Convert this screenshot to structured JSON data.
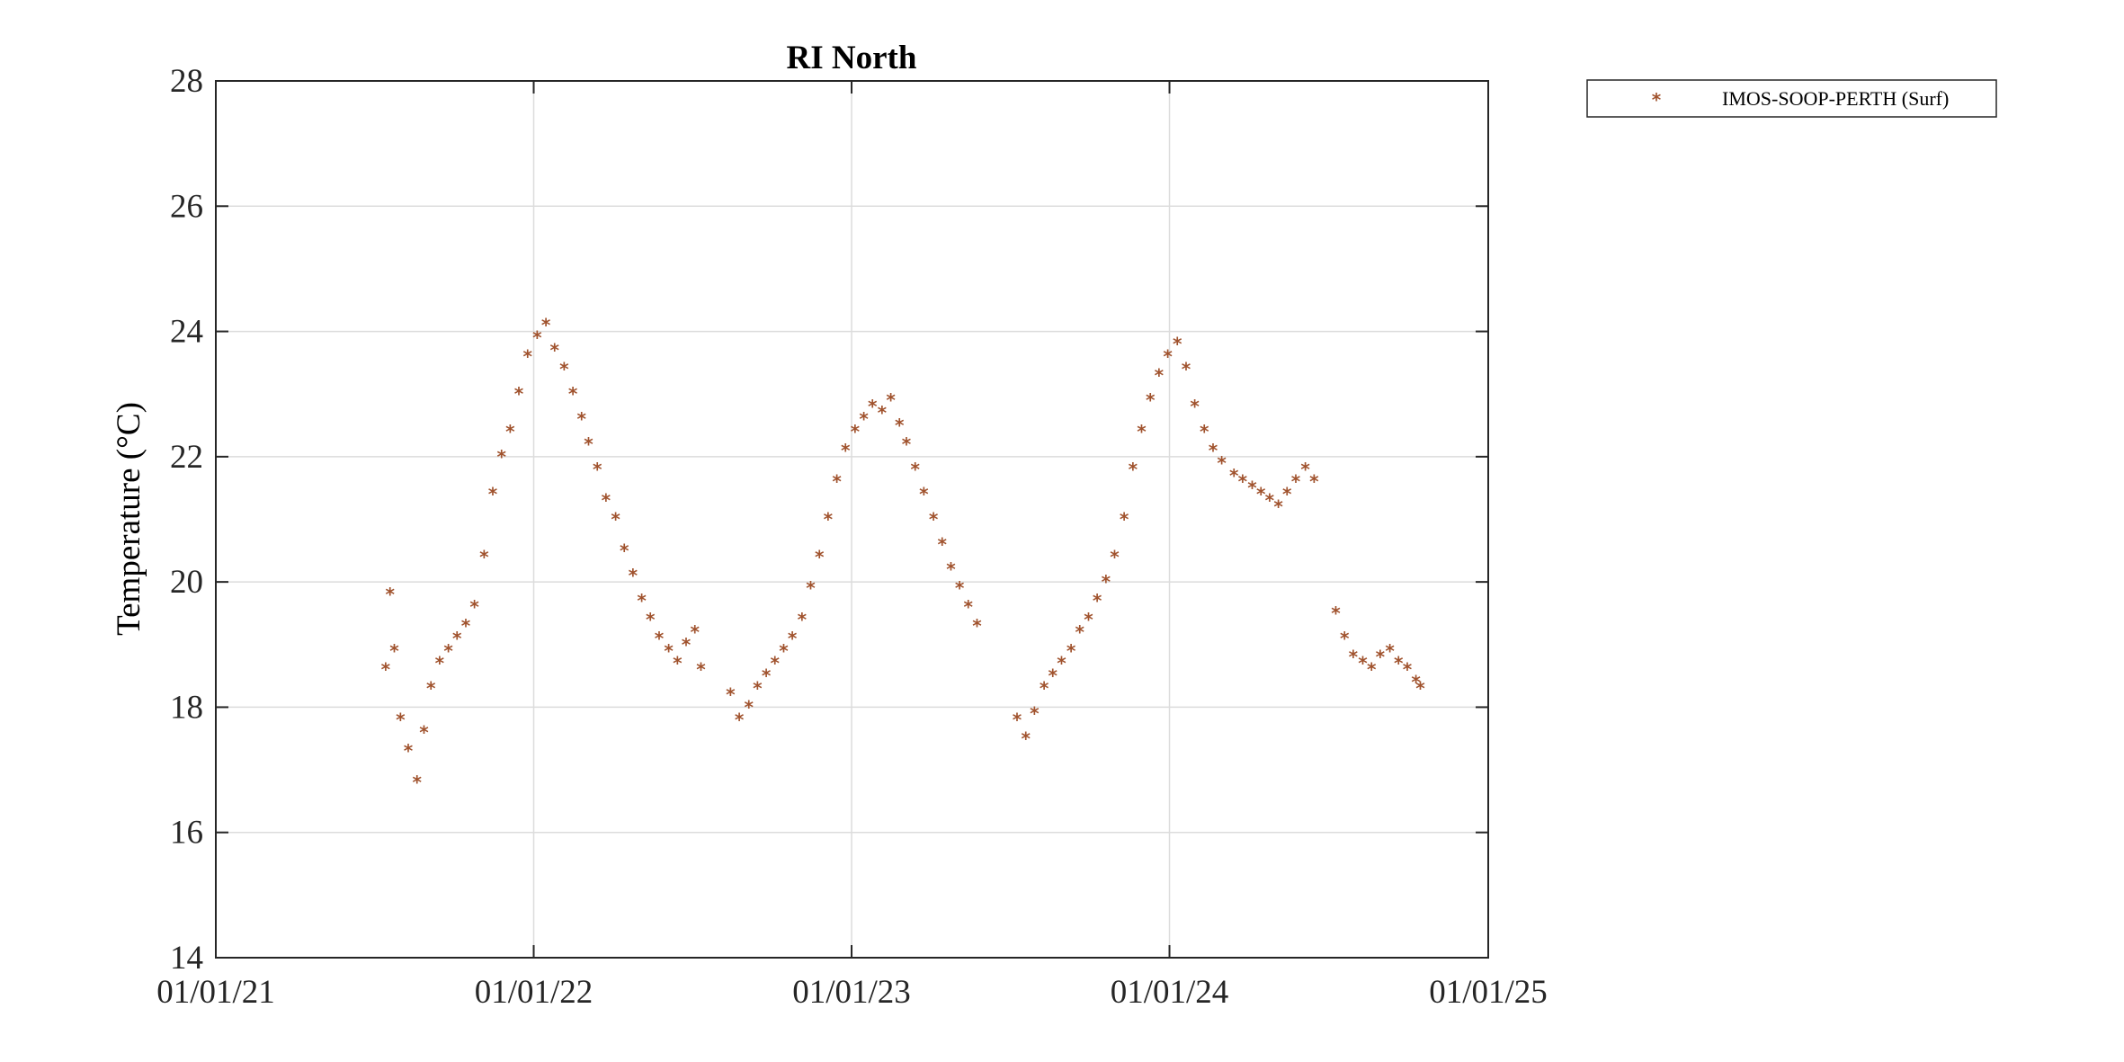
{
  "chart_data": {
    "type": "scatter",
    "title": "RI North",
    "xlabel": "",
    "ylabel": "Temperature (°C)",
    "xlim": [
      "2021-01-01",
      "2025-01-01"
    ],
    "ylim": [
      14,
      28
    ],
    "x_ticks": [
      "2021-01-01",
      "2022-01-01",
      "2023-01-01",
      "2024-01-01",
      "2025-01-01"
    ],
    "x_tick_labels": [
      "01/01/21",
      "01/01/22",
      "01/01/23",
      "01/01/24",
      "01/01/25"
    ],
    "y_ticks": [
      14,
      16,
      18,
      20,
      22,
      24,
      26,
      28
    ],
    "y_tick_labels": [
      "14",
      "16",
      "18",
      "20",
      "22",
      "24",
      "26",
      "28"
    ],
    "grid": true,
    "legend_position": "outside-top-right",
    "marker": "asterisk",
    "series": [
      {
        "name": "IMOS-SOOP-PERTH (Surf)",
        "color": "#A0522D",
        "x": [
          "2021-07-15",
          "2021-07-20",
          "2021-07-25",
          "2021-08-01",
          "2021-08-10",
          "2021-08-20",
          "2021-08-28",
          "2021-09-05",
          "2021-09-15",
          "2021-09-25",
          "2021-10-05",
          "2021-10-15",
          "2021-10-25",
          "2021-11-05",
          "2021-11-15",
          "2021-11-25",
          "2021-12-05",
          "2021-12-15",
          "2021-12-25",
          "2022-01-05",
          "2022-01-15",
          "2022-01-25",
          "2022-02-05",
          "2022-02-15",
          "2022-02-25",
          "2022-03-05",
          "2022-03-15",
          "2022-03-25",
          "2022-04-05",
          "2022-04-15",
          "2022-04-25",
          "2022-05-05",
          "2022-05-15",
          "2022-05-25",
          "2022-06-05",
          "2022-06-15",
          "2022-06-25",
          "2022-07-05",
          "2022-07-12",
          "2022-08-15",
          "2022-08-25",
          "2022-09-05",
          "2022-09-15",
          "2022-09-25",
          "2022-10-05",
          "2022-10-15",
          "2022-10-25",
          "2022-11-05",
          "2022-11-15",
          "2022-11-25",
          "2022-12-05",
          "2022-12-15",
          "2022-12-25",
          "2023-01-05",
          "2023-01-15",
          "2023-01-25",
          "2023-02-05",
          "2023-02-15",
          "2023-02-25",
          "2023-03-05",
          "2023-03-15",
          "2023-03-25",
          "2023-04-05",
          "2023-04-15",
          "2023-04-25",
          "2023-05-05",
          "2023-05-15",
          "2023-05-25",
          "2023-07-10",
          "2023-07-20",
          "2023-07-30",
          "2023-08-10",
          "2023-08-20",
          "2023-08-30",
          "2023-09-10",
          "2023-09-20",
          "2023-09-30",
          "2023-10-10",
          "2023-10-20",
          "2023-10-30",
          "2023-11-10",
          "2023-11-20",
          "2023-11-30",
          "2023-12-10",
          "2023-12-20",
          "2023-12-30",
          "2024-01-10",
          "2024-01-20",
          "2024-01-30",
          "2024-02-10",
          "2024-02-20",
          "2024-03-01",
          "2024-03-15",
          "2024-03-25",
          "2024-04-05",
          "2024-04-15",
          "2024-04-25",
          "2024-05-05",
          "2024-05-15",
          "2024-05-25",
          "2024-06-05",
          "2024-06-15",
          "2024-07-10",
          "2024-07-20",
          "2024-07-30",
          "2024-08-10",
          "2024-08-20",
          "2024-08-30",
          "2024-09-10",
          "2024-09-20",
          "2024-09-30",
          "2024-10-10",
          "2024-10-15"
        ],
        "y": [
          18.6,
          19.8,
          18.9,
          17.8,
          17.3,
          16.8,
          17.6,
          18.3,
          18.7,
          18.9,
          19.1,
          19.3,
          19.6,
          20.4,
          21.4,
          22.0,
          22.4,
          23.0,
          23.6,
          23.9,
          24.1,
          23.7,
          23.4,
          23.0,
          22.6,
          22.2,
          21.8,
          21.3,
          21.0,
          20.5,
          20.1,
          19.7,
          19.4,
          19.1,
          18.9,
          18.7,
          19.0,
          19.2,
          18.6,
          18.2,
          17.8,
          18.0,
          18.3,
          18.5,
          18.7,
          18.9,
          19.1,
          19.4,
          19.9,
          20.4,
          21.0,
          21.6,
          22.1,
          22.4,
          22.6,
          22.8,
          22.7,
          22.9,
          22.5,
          22.2,
          21.8,
          21.4,
          21.0,
          20.6,
          20.2,
          19.9,
          19.6,
          19.3,
          17.8,
          17.5,
          17.9,
          18.3,
          18.5,
          18.7,
          18.9,
          19.2,
          19.4,
          19.7,
          20.0,
          20.4,
          21.0,
          21.8,
          22.4,
          22.9,
          23.3,
          23.6,
          23.8,
          23.4,
          22.8,
          22.4,
          22.1,
          21.9,
          21.7,
          21.6,
          21.5,
          21.4,
          21.3,
          21.2,
          21.4,
          21.6,
          21.8,
          21.6,
          19.5,
          19.1,
          18.8,
          18.7,
          18.6,
          18.8,
          18.9,
          18.7,
          18.6,
          18.4,
          18.3
        ]
      }
    ]
  }
}
